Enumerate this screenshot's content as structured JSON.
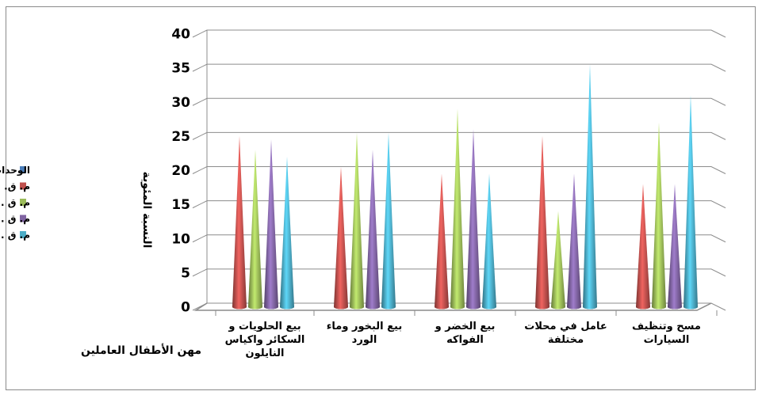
{
  "chart_data": {
    "type": "bar",
    "title": "",
    "xlabel": "مهن الأطفال العاملين",
    "ylabel": "النسبة المئوية",
    "ylim": [
      0,
      40
    ],
    "yticks": [
      0,
      5,
      10,
      15,
      20,
      25,
      30,
      35,
      40
    ],
    "grid": true,
    "legend_position": "left",
    "categories": [
      [
        "بيع الحلويات و",
        "السكائر واكياس",
        "النايلون"
      ],
      [
        "بيع البخور وماء",
        "الورد"
      ],
      [
        "بيع الخضر و",
        "الفواكه"
      ],
      [
        "عامل في محلات",
        "مختلفة"
      ],
      [
        "مسح وتنظيف",
        "السيارات"
      ]
    ],
    "series": [
      {
        "name": "الوحدات الادارية",
        "color": "#4a7ebb",
        "values": [
          0,
          0,
          0,
          0,
          0
        ]
      },
      {
        "name": "م. ق. النجف",
        "color": "#c0504d",
        "values": [
          25,
          20.5,
          19.5,
          25,
          18
        ]
      },
      {
        "name": "م. ق . الكوفة",
        "color": "#9bbb59",
        "values": [
          23,
          25.5,
          29,
          14,
          27
        ]
      },
      {
        "name": "م. ق . المناذرة",
        "color": "#8064a2",
        "values": [
          24.5,
          23,
          26,
          19.5,
          18
        ]
      },
      {
        "name": "م. ق . المشخاب",
        "color": "#4bacc6",
        "values": [
          22,
          25.5,
          19.5,
          35.5,
          31
        ]
      }
    ]
  }
}
